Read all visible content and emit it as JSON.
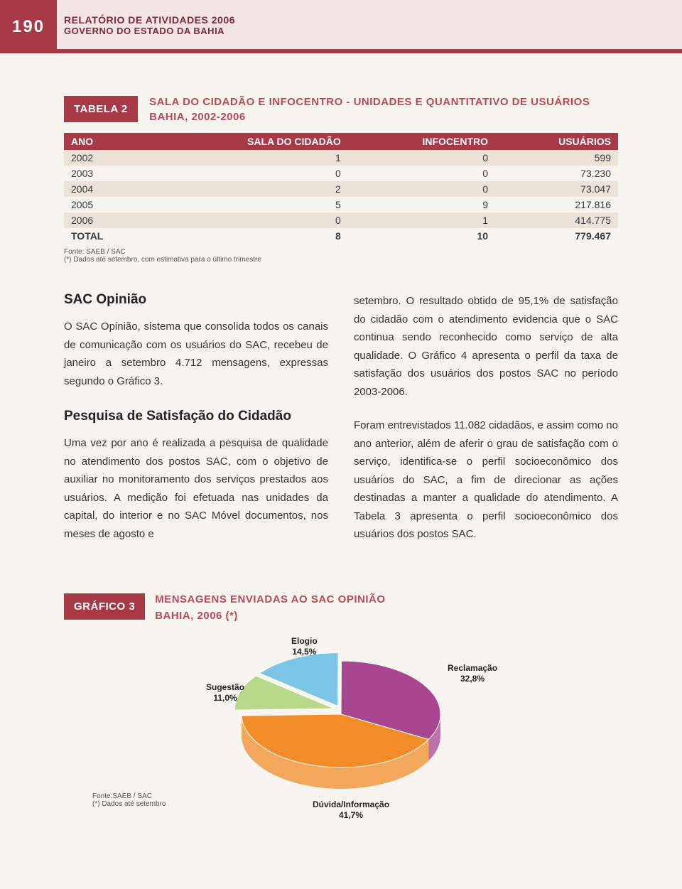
{
  "header": {
    "page_number": "190",
    "title_line1": "RELATÓRIO DE ATIVIDADES 2006",
    "title_line2": "GOVERNO DO ESTADO DA BAHIA"
  },
  "table": {
    "tag": "TABELA 2",
    "title_l1": "SALA DO CIDADÃO E INFOCENTRO - UNIDADES E QUANTITATIVO DE USUÁRIOS",
    "title_l2": "BAHIA, 2002-2006",
    "columns": [
      "ANO",
      "SALA DO CIDADÃO",
      "INFOCENTRO",
      "USUÁRIOS"
    ],
    "rows": [
      [
        "2002",
        "1",
        "0",
        "599"
      ],
      [
        "2003",
        "0",
        "0",
        "73.230"
      ],
      [
        "2004",
        "2",
        "0",
        "73.047"
      ],
      [
        "2005",
        "5",
        "9",
        "217.816"
      ],
      [
        "2006",
        "0",
        "1",
        "414.775"
      ],
      [
        "TOTAL",
        "8",
        "10",
        "779.467"
      ]
    ],
    "footnote_l1": "Fonte: SAEB / SAC",
    "footnote_l2": "(*) Dados até setembro, com estimativa para o último trimestre"
  },
  "body": {
    "h1": "SAC Opinião",
    "p1": "O SAC Opinião, sistema que consolida todos os canais de comunicação com os usuários do SAC, recebeu de janeiro a setembro 4.712 mensagens, expressas segundo o Gráfico 3.",
    "h2": "Pesquisa de Satisfação do Cidadão",
    "p2": "Uma vez por ano é realizada a pesquisa de qualidade no atendimento dos postos SAC, com o objetivo de auxiliar no monitoramento dos serviços prestados aos usuários. A medição foi efetuada nas unidades da capital, do interior e no SAC Móvel documentos, nos meses de agosto e",
    "p3": "setembro. O resultado obtido de 95,1% de satisfação do cidadão com o atendimento evidencia que o SAC continua sendo reconhecido como serviço de alta qualidade. O Gráfico 4 apresenta o perfil da taxa de satisfação dos usuários dos postos SAC no período 2003-2006.",
    "p4": "Foram entrevistados 11.082 cidadãos, e assim como no ano anterior, além de aferir o grau de satisfação com o serviço, identifica-se o perfil socioeconômico dos usuários do SAC, a fim de direcionar as ações destinadas a manter a qualidade do atendimento. A Tabela 3 apresenta o perfil socioeconômico dos usuários dos postos SAC."
  },
  "chart": {
    "tag": "GRÁFICO 3",
    "title_l1": "MENSAGENS ENVIADAS AO SAC OPINIÃO",
    "title_l2": "BAHIA, 2006 (*)",
    "type": "pie3d",
    "slices": [
      {
        "label": "Elogio",
        "pct": "14,5%",
        "value": 14.5,
        "color": "#7cc5e6"
      },
      {
        "label": "Reclamação",
        "pct": "32,8%",
        "value": 32.8,
        "color": "#a8468f"
      },
      {
        "label": "Dúvida/Informação",
        "pct": "41,7%",
        "value": 41.7,
        "color": "#f28c28"
      },
      {
        "label": "Sugestão",
        "pct": "11,0%",
        "value": 11.0,
        "color": "#b8d98a"
      }
    ],
    "footnote_l1": "Fonte:SAEB / SAC",
    "footnote_l2": "(*) Dados até setembro",
    "colors": {
      "side_shadow": "rgba(0,0,0,0.25)"
    }
  }
}
